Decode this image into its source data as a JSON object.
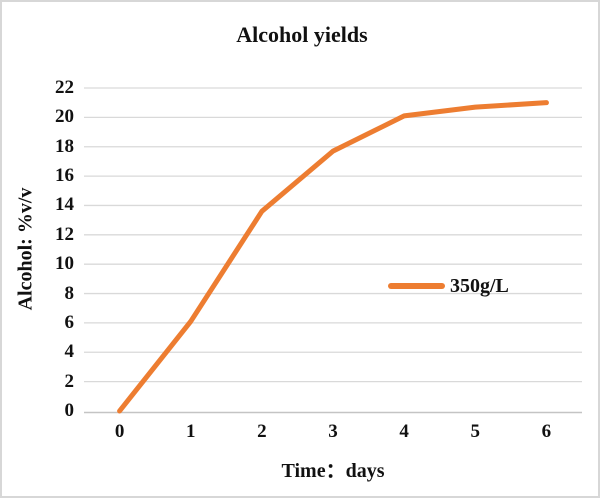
{
  "chart_data": {
    "type": "line",
    "title": "Alcohol yields",
    "xlabel": "Time：days",
    "ylabel": "Alcohol: %v/v",
    "categories": [
      "0",
      "1",
      "2",
      "3",
      "4",
      "5",
      "6"
    ],
    "series": [
      {
        "name": "350g/L",
        "color": "#ED7D31",
        "values": [
          0,
          6.1,
          13.6,
          17.7,
          20.1,
          20.7,
          21
        ]
      }
    ],
    "ylim": [
      0,
      22
    ],
    "ytick_step": 2,
    "grid": "horizontal",
    "legend_position": "middle-right",
    "gridline_color": "#d9d9d9",
    "axisline_color": "#c4c4c4",
    "text_color": "#111111",
    "frame_border_color": "#d7d7d7"
  }
}
